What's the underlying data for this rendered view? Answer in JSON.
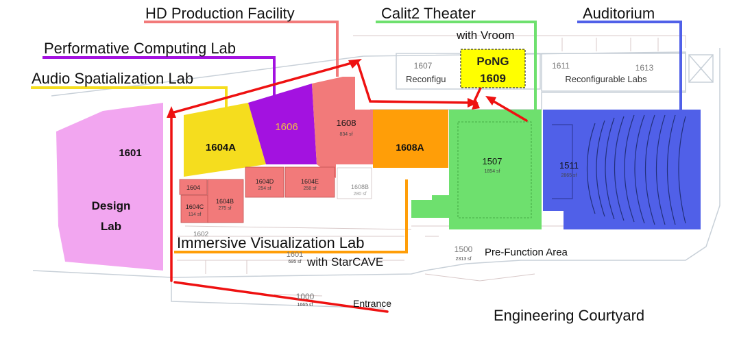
{
  "facility_labels": {
    "hd_production": "HD Production Facility",
    "performative": "Performative Computing Lab",
    "audio": "Audio Spatialization Lab",
    "calit2": "Calit2 Theater",
    "calit2_sub": "with Vroom",
    "auditorium": "Auditorium",
    "immersive": "Immersive Visualization Lab",
    "immersive_sub": "with StarCAVE",
    "pong_line1": "PoNG",
    "pong_line2": "1609",
    "design_line1": "Design",
    "design_line2": "Lab",
    "entrance": "Entrance",
    "courtyard": "Engineering Courtyard",
    "prefunction": "Pre-Function Area"
  },
  "rooms": {
    "r1601": "1601",
    "r1604a": "1604A",
    "r1606": "1606",
    "r1608": "1608",
    "r1608_sf": "834 sf",
    "r1608a": "1608A",
    "r1507": "1507",
    "r1507_sf": "1854 sf",
    "r1511": "1511",
    "r1511_sf": "2865 sf",
    "r1604": "1604",
    "r1604b": "1604B",
    "r1604b_sf": "275 sf",
    "r1604c": "1604C",
    "r1604c_sf": "114 sf",
    "r1604d": "1604D",
    "r1604d_sf": "254 sf",
    "r1604e": "1604E",
    "r1604e_sf": "258 sf",
    "r1608b": "1608B",
    "r1608b_sf": "280 sf",
    "r1607": "1607",
    "r1607_label": "Reconfigu",
    "r1611": "1611",
    "r1613": "1613",
    "reconfig_labs": "Reconfigurable Labs",
    "r1602": "1602",
    "r1601_lower": "1601",
    "r1601_lower_sf": "695 sf",
    "r1000": "1000",
    "r1000_sf": "1665 sf",
    "r1500": "1500",
    "r1500_sf": "2313 sf"
  },
  "colors": {
    "design_lab": "#f2a6f0",
    "audio_lab": "#f5dd1e",
    "performative_lab": "#a312e0",
    "hd_production": "#f27a7a",
    "immersive": "#ff9e08",
    "calit2": "#6ee06e",
    "auditorium": "#5060e8",
    "pong": "#ffff00",
    "route": "#ee1111"
  }
}
